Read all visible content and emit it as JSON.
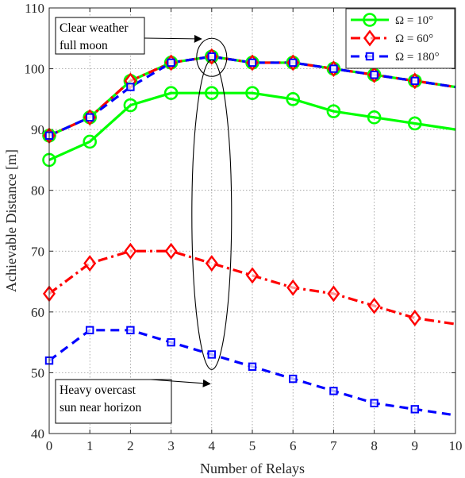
{
  "chart_data": {
    "type": "line",
    "title": "",
    "xlabel": "Number of Relays",
    "ylabel": "Achievable Distance [m]",
    "xlim": [
      0,
      10
    ],
    "ylim": [
      40,
      110
    ],
    "xticks": [
      0,
      1,
      2,
      3,
      4,
      5,
      6,
      7,
      8,
      9,
      10
    ],
    "yticks": [
      40,
      50,
      60,
      70,
      80,
      90,
      100,
      110
    ],
    "x_tick_labels": [
      "0",
      "1",
      "2",
      "3",
      "4",
      "5",
      "6",
      "7",
      "8",
      "9",
      "10"
    ],
    "y_tick_labels": [
      "40",
      "50",
      "60",
      "70",
      "80",
      "90",
      "100",
      "110"
    ],
    "grid": true,
    "legend_position": "top-right",
    "series": [
      {
        "name": "Ω = 10°",
        "group": "clear",
        "color": "#00ff00",
        "dash": "solid",
        "marker": "circle",
        "x": [
          0,
          1,
          2,
          3,
          4,
          5,
          6,
          7,
          8,
          9,
          10
        ],
        "y": [
          89,
          92,
          98,
          101,
          102,
          101,
          101,
          100,
          99,
          98,
          97
        ]
      },
      {
        "name": "Ω = 10°",
        "group": "overcast",
        "color": "#00ff00",
        "dash": "solid",
        "marker": "circle",
        "x": [
          0,
          1,
          2,
          3,
          4,
          5,
          6,
          7,
          8,
          9,
          10
        ],
        "y": [
          85,
          88,
          94,
          96,
          96,
          96,
          95,
          93,
          92,
          91,
          90
        ]
      },
      {
        "name": "Ω = 60°",
        "group": "clear",
        "color": "#ff0000",
        "dash": "dashdot",
        "marker": "diamond",
        "x": [
          0,
          1,
          2,
          3,
          4,
          5,
          6,
          7,
          8,
          9,
          10
        ],
        "y": [
          89,
          92,
          98,
          101,
          102,
          101,
          101,
          100,
          99,
          98,
          97
        ]
      },
      {
        "name": "Ω = 60°",
        "group": "overcast",
        "color": "#ff0000",
        "dash": "dashdot",
        "marker": "diamond",
        "x": [
          0,
          1,
          2,
          3,
          4,
          5,
          6,
          7,
          8,
          9,
          10
        ],
        "y": [
          63,
          68,
          70,
          70,
          68,
          66,
          64,
          63,
          61,
          59,
          58
        ]
      },
      {
        "name": "Ω = 180°",
        "group": "clear",
        "color": "#0000ff",
        "dash": "dashed",
        "marker": "square",
        "x": [
          0,
          1,
          2,
          3,
          4,
          5,
          6,
          7,
          8,
          9,
          10
        ],
        "y": [
          89,
          92,
          97,
          101,
          102,
          101,
          101,
          100,
          99,
          98,
          97
        ]
      },
      {
        "name": "Ω = 180°",
        "group": "overcast",
        "color": "#0000ff",
        "dash": "dashed",
        "marker": "square",
        "x": [
          0,
          1,
          2,
          3,
          4,
          5,
          6,
          7,
          8,
          9,
          10
        ],
        "y": [
          52,
          57,
          57,
          55,
          53,
          51,
          49,
          47,
          45,
          44,
          43
        ]
      }
    ],
    "legend": [
      {
        "label": "Ω = 10°",
        "color": "#00ff00",
        "dash": "solid",
        "marker": "circle"
      },
      {
        "label": "Ω = 60°",
        "color": "#ff0000",
        "dash": "dashdot",
        "marker": "diamond"
      },
      {
        "label": "Ω = 180°",
        "color": "#0000ff",
        "dash": "dashed",
        "marker": "square"
      }
    ],
    "annotations": [
      {
        "id": "clear",
        "lines": [
          "Clear weather",
          "full moon"
        ],
        "target": [
          4,
          102
        ]
      },
      {
        "id": "overcast",
        "lines": [
          "Heavy overcast",
          "sun near horizon"
        ],
        "target": [
          4,
          50
        ]
      }
    ]
  }
}
